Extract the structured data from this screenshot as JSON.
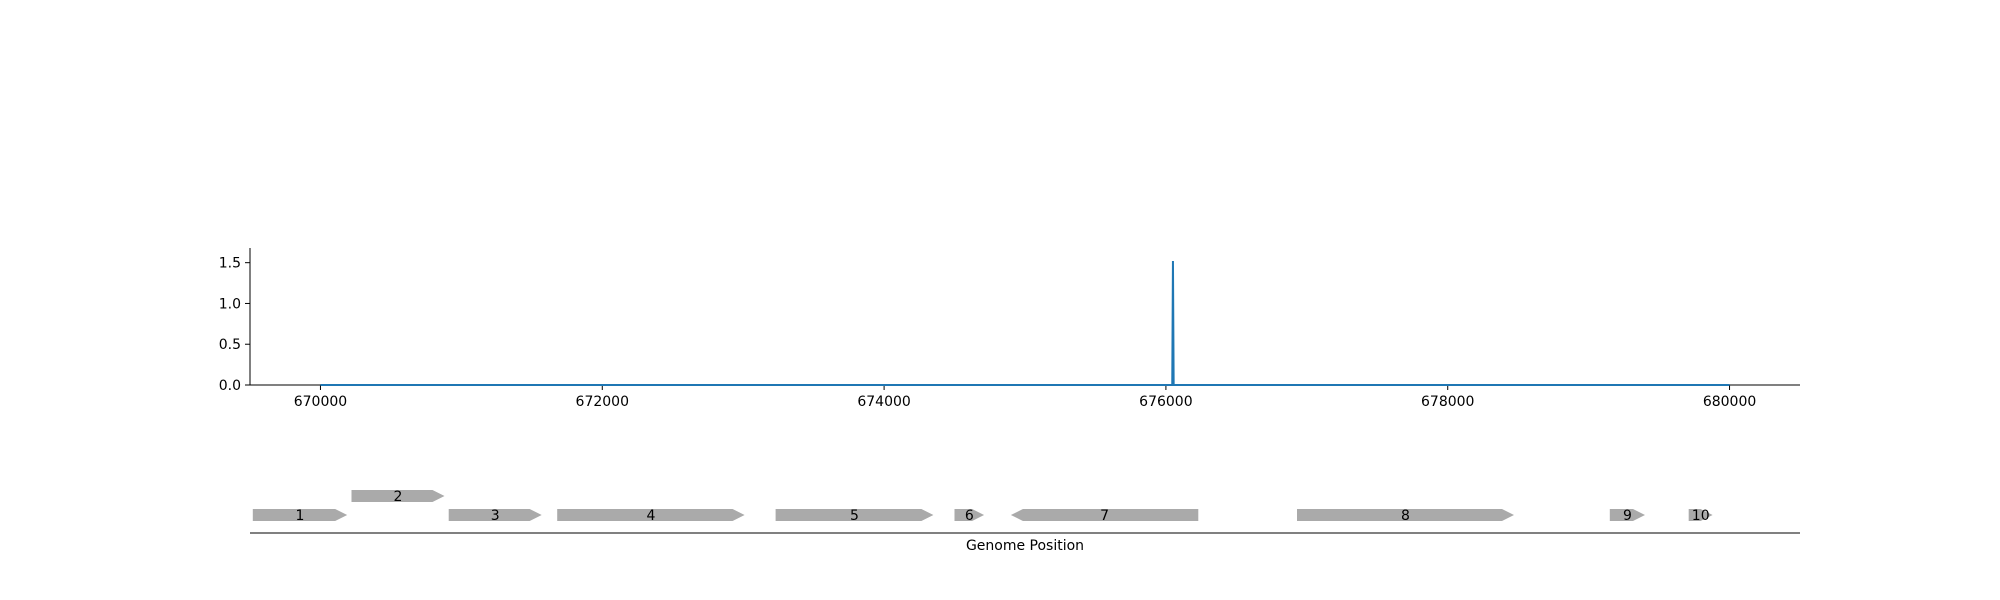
{
  "chart_data": [
    {
      "type": "line",
      "title": "",
      "xlabel": "",
      "ylabel": "",
      "xlim": [
        669500,
        680500
      ],
      "ylim": [
        0,
        1.68
      ],
      "x_ticks": [
        670000,
        672000,
        674000,
        676000,
        678000,
        680000
      ],
      "y_ticks": [
        0.0,
        0.5,
        1.0,
        1.5
      ],
      "x_tick_labels": [
        "670000",
        "672000",
        "674000",
        "676000",
        "678000",
        "680000"
      ],
      "y_tick_labels": [
        "0.0",
        "0.5",
        "1.0",
        "1.5"
      ],
      "grid": false,
      "color": "#1f77b4",
      "series": [
        {
          "x": [
            670000,
            676045,
            676050,
            676055,
            680000
          ],
          "y": [
            0,
            0,
            1.52,
            0,
            0
          ]
        }
      ]
    },
    {
      "type": "gene-map",
      "xlabel": "Genome Position",
      "xlim": [
        669500,
        680500
      ],
      "color": "#aaaaaa",
      "genes": [
        {
          "label": "1",
          "start": 669520,
          "end": 670190,
          "strand": "+",
          "row": 0
        },
        {
          "label": "2",
          "start": 670220,
          "end": 670880,
          "strand": "+",
          "row": 1
        },
        {
          "label": "3",
          "start": 670910,
          "end": 671570,
          "strand": "+",
          "row": 0
        },
        {
          "label": "4",
          "start": 671680,
          "end": 673010,
          "strand": "+",
          "row": 0
        },
        {
          "label": "5",
          "start": 673230,
          "end": 674350,
          "strand": "+",
          "row": 0
        },
        {
          "label": "6",
          "start": 674500,
          "end": 674710,
          "strand": "+",
          "row": 0
        },
        {
          "label": "7",
          "start": 674900,
          "end": 676230,
          "strand": "-",
          "row": 0
        },
        {
          "label": "8",
          "start": 676930,
          "end": 678470,
          "strand": "+",
          "row": 0
        },
        {
          "label": "9",
          "start": 679150,
          "end": 679400,
          "strand": "+",
          "row": 0
        },
        {
          "label": "10",
          "start": 679710,
          "end": 679880,
          "strand": "+",
          "row": 0
        }
      ]
    }
  ]
}
